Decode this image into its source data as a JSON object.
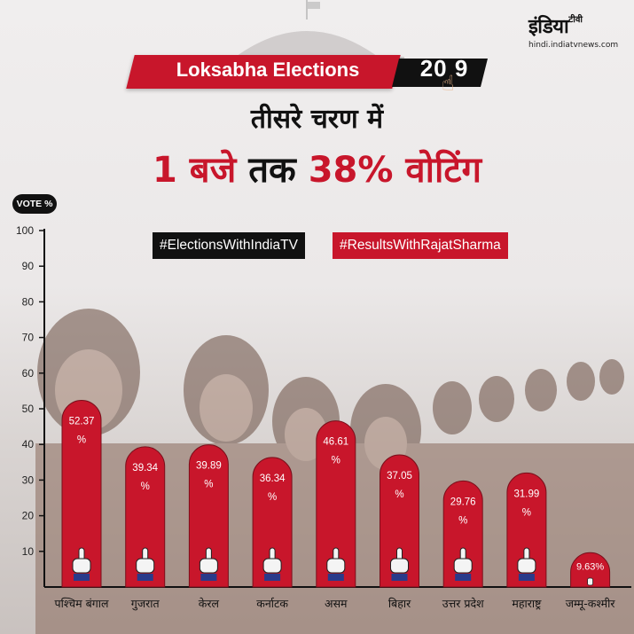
{
  "brand": {
    "logo_text": "इंडिया",
    "logo_suffix": "टीवी",
    "url": "hindi.indiatvnews.com"
  },
  "header": {
    "banner": "Loksabha Elections",
    "year": "20 9",
    "subtitle": "तीसरे चरण में",
    "headline_part1": "1 बजे",
    "headline_part2": "तक",
    "headline_part3": "38% वोटिंग"
  },
  "axis_badge": "VOTE %",
  "hashtags": [
    "#ElectionsWithIndiaTV",
    "#ResultsWithRajatSharma"
  ],
  "colors": {
    "accent_red": "#c8162b",
    "black": "#111111"
  },
  "icons": {
    "bar_icon": "voting-finger-icon",
    "year_icon": "pointing-hand-icon"
  },
  "chart_data": {
    "type": "bar",
    "categories": [
      "पश्चिम बंगाल",
      "गुजरात",
      "केरल",
      "कर्नाटक",
      "असम",
      "बिहार",
      "उत्तर प्रदेश",
      "महाराष्ट्र",
      "जम्मू-कश्मीर"
    ],
    "values": [
      52.37,
      39.34,
      39.89,
      36.34,
      46.61,
      37.05,
      29.76,
      31.99,
      9.63
    ],
    "value_labels": [
      "52.37\n%",
      "39.34\n%",
      "39.89\n%",
      "36.34\n%",
      "46.61\n%",
      "37.05\n%",
      "29.76\n%",
      "31.99\n%",
      "9.63%"
    ],
    "ylim": [
      0,
      100
    ],
    "yticks": [
      10,
      20,
      30,
      40,
      50,
      60,
      70,
      80,
      90,
      100
    ],
    "ylabel": "VOTE %",
    "grid": false,
    "bar_color": "#c8162b"
  }
}
